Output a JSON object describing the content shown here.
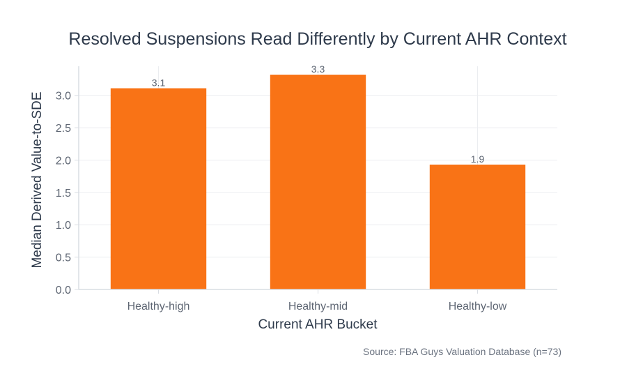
{
  "chart_data": {
    "type": "bar",
    "title": "Resolved Suspensions Read Differently by Current AHR Context",
    "xlabel": "Current AHR Bucket",
    "ylabel": "Median Derived Value-to-SDE",
    "categories": [
      "Healthy-high",
      "Healthy-mid",
      "Healthy-low"
    ],
    "values": [
      3.11,
      3.32,
      1.93
    ],
    "data_labels": [
      "3.1",
      "3.3",
      "1.9"
    ],
    "ylim": [
      0,
      3.45
    ],
    "yticks": [
      0,
      0.5,
      1.0,
      1.5,
      2.0,
      2.5,
      3.0
    ],
    "ytick_labels": [
      "0.0",
      "0.5",
      "1.0",
      "1.5",
      "2.0",
      "2.5",
      "3.0"
    ],
    "grid": true,
    "legend": "none",
    "bar_color": "#f97316",
    "source": "Source: FBA Guys Valuation Database (n=73)"
  }
}
